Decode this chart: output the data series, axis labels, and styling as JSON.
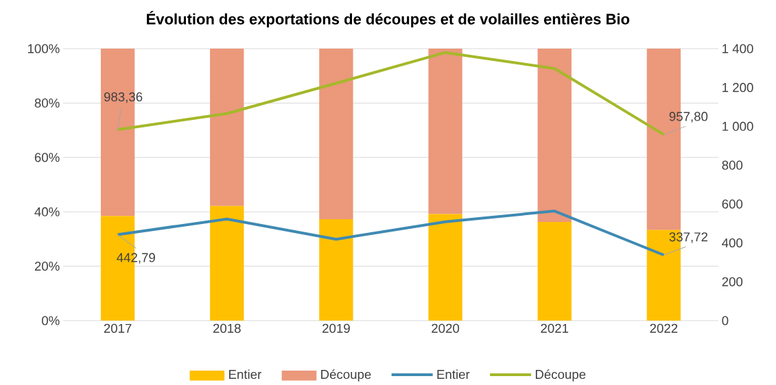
{
  "chart_data": {
    "type": "bar",
    "title": "Évolution des exportations de découpes et de volailles entières Bio",
    "categories": [
      "2017",
      "2018",
      "2019",
      "2020",
      "2021",
      "2022"
    ],
    "stacked": true,
    "grid": "y",
    "legend": "bottom",
    "ylim": [
      0,
      100
    ],
    "yticks": [
      {
        "value": 0,
        "label": "0%"
      },
      {
        "value": 20,
        "label": "20%"
      },
      {
        "value": 40,
        "label": "40%"
      },
      {
        "value": 60,
        "label": "60%"
      },
      {
        "value": 80,
        "label": "80%"
      },
      {
        "value": 100,
        "label": "100%"
      }
    ],
    "y2lim": [
      0,
      1400
    ],
    "y2ticks": [
      0,
      200,
      400,
      600,
      800,
      {
        "value": 1000,
        "label": "1 000"
      },
      {
        "value": 1200,
        "label": "1 200"
      },
      {
        "value": 1400,
        "label": "1 400"
      }
    ],
    "series": [
      {
        "name": "Entier",
        "color": "#ffc000",
        "values": [
          38.5,
          42.1,
          37.3,
          39.2,
          36.3,
          33.3
        ]
      },
      {
        "name": "Découpe",
        "color": "#eb987b",
        "values": [
          61.5,
          57.9,
          62.7,
          60.8,
          63.7,
          66.7
        ]
      },
      {
        "name": "Entier",
        "type": "line",
        "axis": "y2",
        "color": "#3f8ab3",
        "values": [
          442.79,
          523,
          419,
          509,
          564,
          337.72
        ],
        "value_labels": [
          "442,79",
          null,
          null,
          null,
          null,
          "337,72"
        ]
      },
      {
        "name": "Découpe",
        "type": "line",
        "axis": "y2",
        "color": "#a5b82a",
        "values": [
          983.36,
          1066,
          1222,
          1380,
          1298,
          957.8
        ],
        "value_labels": [
          "983,36",
          null,
          null,
          null,
          null,
          "957,80"
        ]
      }
    ]
  }
}
